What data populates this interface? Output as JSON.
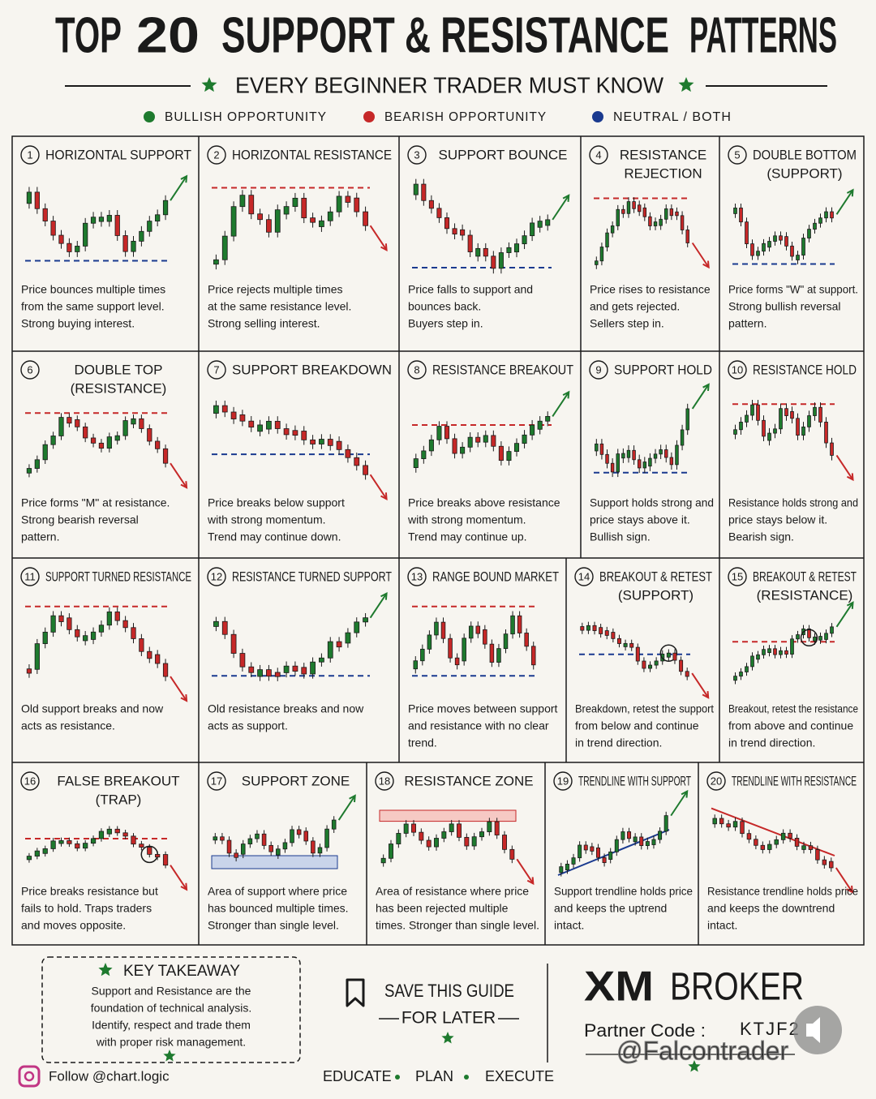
{
  "header": {
    "title": [
      "TOP",
      "20",
      "SUPPORT & RESISTANCE",
      "PATTERNS"
    ],
    "subtitle": "EVERY BEGINNER TRADER MUST KNOW",
    "legend": [
      "BULLISH OPPORTUNITY",
      "BEARISH OPPORTUNITY",
      "NEUTRAL / BOTH"
    ]
  },
  "patterns": [
    {
      "number": 1,
      "title": [
        "HORIZONTAL SUPPORT"
      ],
      "description": [
        "Price bounces multiple times",
        "from the same support level.",
        "Strong buying interest."
      ]
    },
    {
      "number": 2,
      "title": [
        "HORIZONTAL RESISTANCE"
      ],
      "description": [
        "Price rejects multiple times",
        "at the same resistance level.",
        "Strong selling interest."
      ]
    },
    {
      "number": 3,
      "title": [
        "SUPPORT BOUNCE"
      ],
      "description": [
        "Price falls to support and",
        "bounces back.",
        "Buyers step in."
      ]
    },
    {
      "number": 4,
      "title": [
        "RESISTANCE",
        "REJECTION"
      ],
      "description": [
        "Price rises to resistance",
        "and gets rejected.",
        "Sellers step in."
      ]
    },
    {
      "number": 5,
      "title": [
        "DOUBLE BOTTOM",
        "(SUPPORT)"
      ],
      "description": [
        "Price forms \"W\" at support.",
        "Strong bullish reversal",
        "pattern."
      ]
    },
    {
      "number": 6,
      "title": [
        "DOUBLE TOP",
        "(RESISTANCE)"
      ],
      "description": [
        "Price forms \"M\" at resistance.",
        "Strong bearish reversal",
        "pattern."
      ]
    },
    {
      "number": 7,
      "title": [
        "SUPPORT BREAKDOWN"
      ],
      "description": [
        "Price breaks below support",
        "with strong momentum.",
        "Trend may continue down."
      ]
    },
    {
      "number": 8,
      "title": [
        "RESISTANCE BREAKOUT"
      ],
      "description": [
        "Price breaks above resistance",
        "with strong momentum.",
        "Trend may continue up."
      ]
    },
    {
      "number": 9,
      "title": [
        "SUPPORT HOLD"
      ],
      "description": [
        "Support holds strong and",
        "price stays above it.",
        "Bullish sign."
      ]
    },
    {
      "number": 10,
      "title": [
        "RESISTANCE HOLD"
      ],
      "description": [
        "Resistance holds strong and",
        "price stays below it.",
        "Bearish sign."
      ]
    },
    {
      "number": 11,
      "title": [
        "SUPPORT TURNED RESISTANCE"
      ],
      "description": [
        "Old support breaks and now",
        "acts as resistance."
      ]
    },
    {
      "number": 12,
      "title": [
        "RESISTANCE TURNED SUPPORT"
      ],
      "description": [
        "Old resistance breaks and now",
        "acts as support."
      ]
    },
    {
      "number": 13,
      "title": [
        "RANGE BOUND MARKET"
      ],
      "description": [
        "Price moves between support",
        "and resistance with no clear",
        "trend."
      ]
    },
    {
      "number": 14,
      "title": [
        "BREAKOUT & RETEST",
        "(SUPPORT)"
      ],
      "description": [
        "Breakdown, retest the support",
        "from below and continue",
        "in trend direction."
      ]
    },
    {
      "number": 15,
      "title": [
        "BREAKOUT & RETEST",
        "(RESISTANCE)"
      ],
      "description": [
        "Breakout, retest the resistance",
        "from above and continue",
        "in trend direction."
      ]
    },
    {
      "number": 16,
      "title": [
        "FALSE BREAKOUT",
        "(TRAP)"
      ],
      "description": [
        "Price breaks resistance but",
        "fails to hold. Traps traders",
        "and moves opposite."
      ]
    },
    {
      "number": 17,
      "title": [
        "SUPPORT ZONE"
      ],
      "description": [
        "Area of support where price",
        "has bounced multiple times.",
        "Stronger than single level."
      ]
    },
    {
      "number": 18,
      "title": [
        "RESISTANCE ZONE"
      ],
      "description": [
        "Area of resistance where price",
        "has been rejected multiple",
        "times. Stronger than single level."
      ]
    },
    {
      "number": 19,
      "title": [
        "TRENDLINE WITH SUPPORT"
      ],
      "description": [
        "Support trendline holds price",
        "and keeps the uptrend",
        "intact."
      ]
    },
    {
      "number": 20,
      "title": [
        "TRENDLINE WITH RESISTANCE"
      ],
      "description": [
        "Resistance trendline holds price",
        "and keeps the downtrend",
        "intact."
      ]
    }
  ],
  "key_takeaway": {
    "title": "KEY TAKEAWAY",
    "text": [
      "Support and Resistance are the",
      "foundation of technical analysis.",
      "Identify, respect and trade them",
      "with proper risk management."
    ]
  },
  "save": {
    "title": "SAVE THIS GUIDE",
    "subtitle": "FOR LATER"
  },
  "broker": {
    "name": [
      "XM",
      "BROKER"
    ],
    "partner_label": "Partner Code :",
    "partner_code": "KTJF2"
  },
  "social": "Follow @chart.logic",
  "motto": [
    "EDUCATE",
    "PLAN",
    "EXECUTE"
  ],
  "watermark": "@Falcontrader"
}
